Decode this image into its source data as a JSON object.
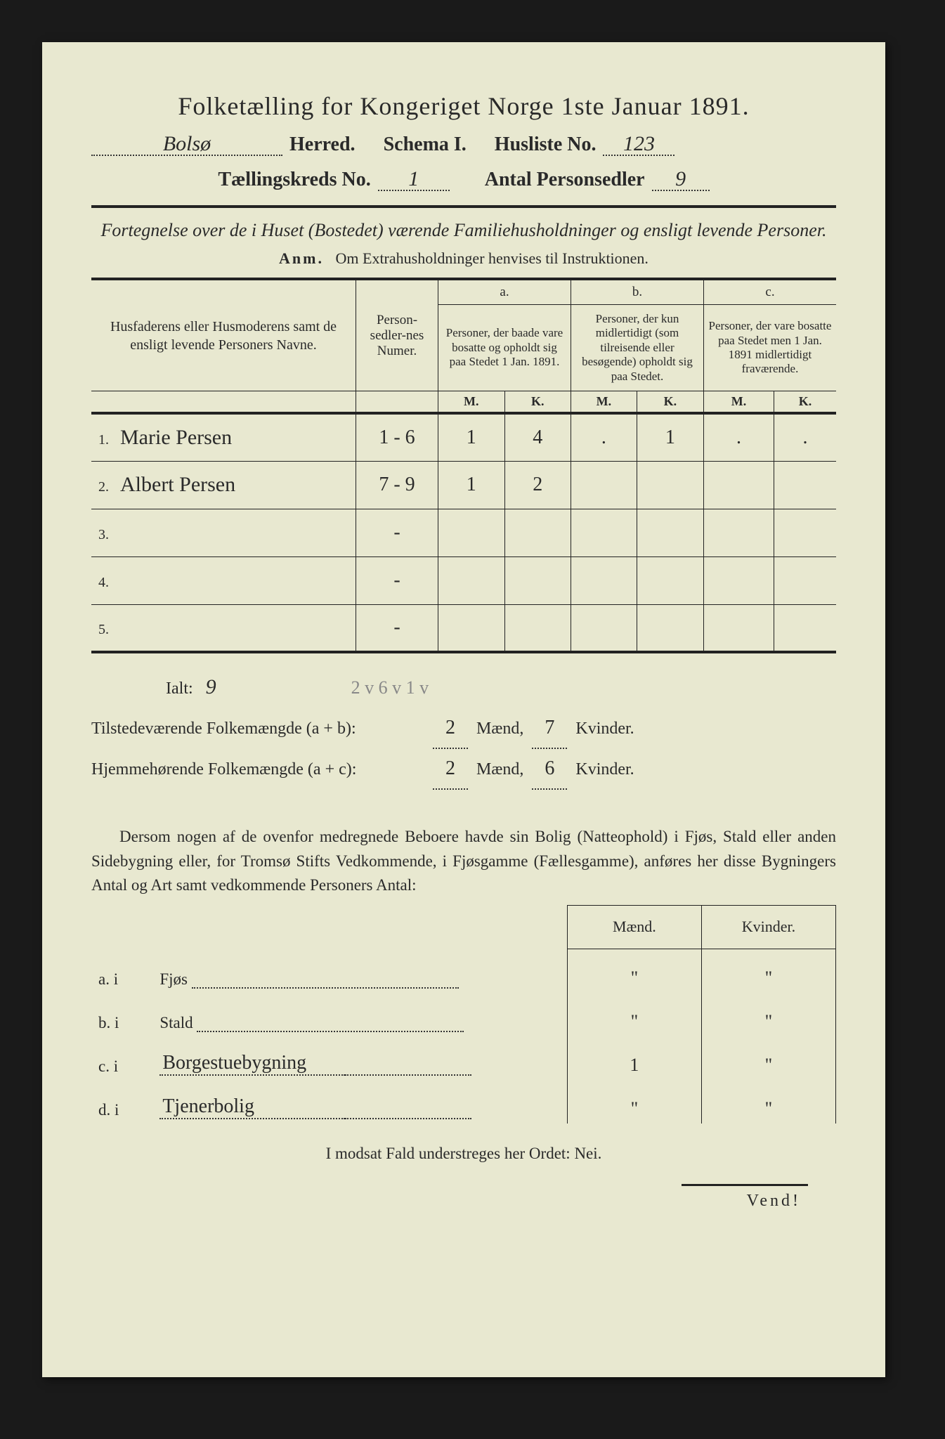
{
  "title": "Folketælling for Kongeriget Norge 1ste Januar 1891.",
  "header": {
    "herred_value": "Bolsø",
    "herred_label": "Herred.",
    "schema_label": "Schema I.",
    "husliste_label": "Husliste No.",
    "husliste_value": "123",
    "kreds_label": "Tællingskreds No.",
    "kreds_value": "1",
    "antal_label": "Antal Personsedler",
    "antal_value": "9"
  },
  "subtitle": "Fortegnelse over de i Huset (Bostedet) værende Familiehusholdninger og ensligt levende Personer.",
  "anm_prefix": "Anm.",
  "anm_text": "Om Extrahusholdninger henvises til Instruktionen.",
  "table": {
    "col_name": "Husfaderens eller Husmoderens samt de ensligt levende Personers Navne.",
    "col_num": "Person-sedler-nes Numer.",
    "col_a_top": "a.",
    "col_a": "Personer, der baade vare bosatte og opholdt sig paa Stedet 1 Jan. 1891.",
    "col_b_top": "b.",
    "col_b": "Personer, der kun midlertidigt (som tilreisende eller besøgende) opholdt sig paa Stedet.",
    "col_c_top": "c.",
    "col_c": "Personer, der vare bosatte paa Stedet men 1 Jan. 1891 midlertidigt fraværende.",
    "m": "M.",
    "k": "K.",
    "rows": [
      {
        "n": "1.",
        "name": "Marie Persen",
        "num": "1 - 6",
        "am": "1",
        "ak": "4",
        "bm": ".",
        "bk": "1",
        "cm": ".",
        "ck": "."
      },
      {
        "n": "2.",
        "name": "Albert Persen",
        "num": "7 - 9",
        "am": "1",
        "ak": "2",
        "bm": "",
        "bk": "",
        "cm": "",
        "ck": ""
      },
      {
        "n": "3.",
        "name": "",
        "num": "-",
        "am": "",
        "ak": "",
        "bm": "",
        "bk": "",
        "cm": "",
        "ck": ""
      },
      {
        "n": "4.",
        "name": "",
        "num": "-",
        "am": "",
        "ak": "",
        "bm": "",
        "bk": "",
        "cm": "",
        "ck": ""
      },
      {
        "n": "5.",
        "name": "",
        "num": "-",
        "am": "",
        "ak": "",
        "bm": "",
        "bk": "",
        "cm": "",
        "ck": ""
      }
    ]
  },
  "summary": {
    "ialt_label": "Ialt:",
    "ialt_value": "9",
    "pencil_check": "2 v  6 v    1 v",
    "present_label": "Tilstedeværende Folkemængde (a + b):",
    "present_m": "2",
    "present_k": "7",
    "home_label": "Hjemmehørende Folkemængde (a + c):",
    "home_m": "2",
    "home_k": "6",
    "maend": "Mænd,",
    "kvinder": "Kvinder."
  },
  "paragraph": "Dersom nogen af de ovenfor medregnede Beboere havde sin Bolig (Natteophold) i Fjøs, Stald eller anden Sidebygning eller, for Tromsø Stifts Vedkommende, i Fjøsgamme (Fællesgamme), anføres her disse Bygningers Antal og Art samt vedkommende Personers Antal:",
  "sub": {
    "maend": "Mænd.",
    "kvinder": "Kvinder.",
    "rows": [
      {
        "lab": "a.  i",
        "type": "Fjøs",
        "type_hw": "",
        "m": "\"",
        "k": "\""
      },
      {
        "lab": "b.  i",
        "type": "Stald",
        "type_hw": "",
        "m": "\"",
        "k": "\""
      },
      {
        "lab": "c.  i",
        "type": "",
        "type_hw": "Borgestuebygning",
        "m": "1",
        "k": "\""
      },
      {
        "lab": "d.  i",
        "type": "",
        "type_hw": "Tjenerbolig",
        "m": "\"",
        "k": "\""
      }
    ]
  },
  "footer": "I modsat Fald understreges her Ordet: Nei.",
  "vend": "Vend!"
}
